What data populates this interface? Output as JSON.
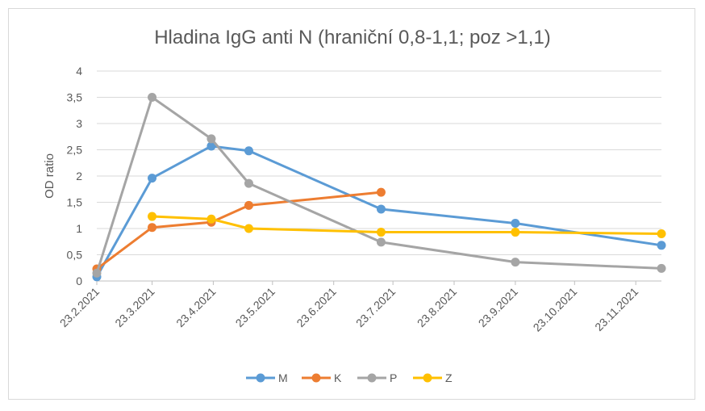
{
  "chart_data": {
    "type": "line",
    "title": "Hladina IgG anti N (hraniční 0,8-1,1; poz >1,1)",
    "xlabel": "",
    "ylabel": "OD ratio",
    "ylim": [
      0,
      4
    ],
    "yticks": [
      "0",
      "0,5",
      "1",
      "1,5",
      "2",
      "2,5",
      "3",
      "3,5",
      "4"
    ],
    "xlim": [
      "2021-02-23",
      "2021-12-06"
    ],
    "xticks": [
      {
        "date": "2021-02-23",
        "label": "23.2.2021"
      },
      {
        "date": "2021-03-23",
        "label": "23.3.2021"
      },
      {
        "date": "2021-04-23",
        "label": "23.4.2021"
      },
      {
        "date": "2021-05-23",
        "label": "23.5.2021"
      },
      {
        "date": "2021-06-23",
        "label": "23.6.2021"
      },
      {
        "date": "2021-07-23",
        "label": "23.7.2021"
      },
      {
        "date": "2021-08-23",
        "label": "23.8.2021"
      },
      {
        "date": "2021-09-23",
        "label": "23.9.2021"
      },
      {
        "date": "2021-10-23",
        "label": "23.10.2021"
      },
      {
        "date": "2021-11-23",
        "label": "23.11.2021"
      }
    ],
    "grid": true,
    "legend_position": "bottom",
    "series": [
      {
        "name": "M",
        "color": "#5b9bd5",
        "points": [
          {
            "x": "2021-02-23",
            "y": 0.08
          },
          {
            "x": "2021-03-23",
            "y": 1.96
          },
          {
            "x": "2021-04-22",
            "y": 2.57
          },
          {
            "x": "2021-05-11",
            "y": 2.48
          },
          {
            "x": "2021-07-17",
            "y": 1.37
          },
          {
            "x": "2021-09-23",
            "y": 1.1
          },
          {
            "x": "2021-12-06",
            "y": 0.68
          }
        ]
      },
      {
        "name": "K",
        "color": "#ed7d31",
        "points": [
          {
            "x": "2021-02-23",
            "y": 0.23
          },
          {
            "x": "2021-03-23",
            "y": 1.02
          },
          {
            "x": "2021-04-22",
            "y": 1.12
          },
          {
            "x": "2021-05-11",
            "y": 1.44
          },
          {
            "x": "2021-07-17",
            "y": 1.69
          }
        ]
      },
      {
        "name": "P",
        "color": "#a5a5a5",
        "points": [
          {
            "x": "2021-02-23",
            "y": 0.15
          },
          {
            "x": "2021-03-23",
            "y": 3.5
          },
          {
            "x": "2021-04-22",
            "y": 2.71
          },
          {
            "x": "2021-05-11",
            "y": 1.86
          },
          {
            "x": "2021-07-17",
            "y": 0.74
          },
          {
            "x": "2021-09-23",
            "y": 0.36
          },
          {
            "x": "2021-12-06",
            "y": 0.24
          }
        ]
      },
      {
        "name": "Z",
        "color": "#ffc000",
        "points": [
          {
            "x": "2021-03-23",
            "y": 1.23
          },
          {
            "x": "2021-04-22",
            "y": 1.18
          },
          {
            "x": "2021-05-11",
            "y": 1.0
          },
          {
            "x": "2021-07-17",
            "y": 0.93
          },
          {
            "x": "2021-09-23",
            "y": 0.93
          },
          {
            "x": "2021-12-06",
            "y": 0.9
          }
        ]
      }
    ]
  }
}
